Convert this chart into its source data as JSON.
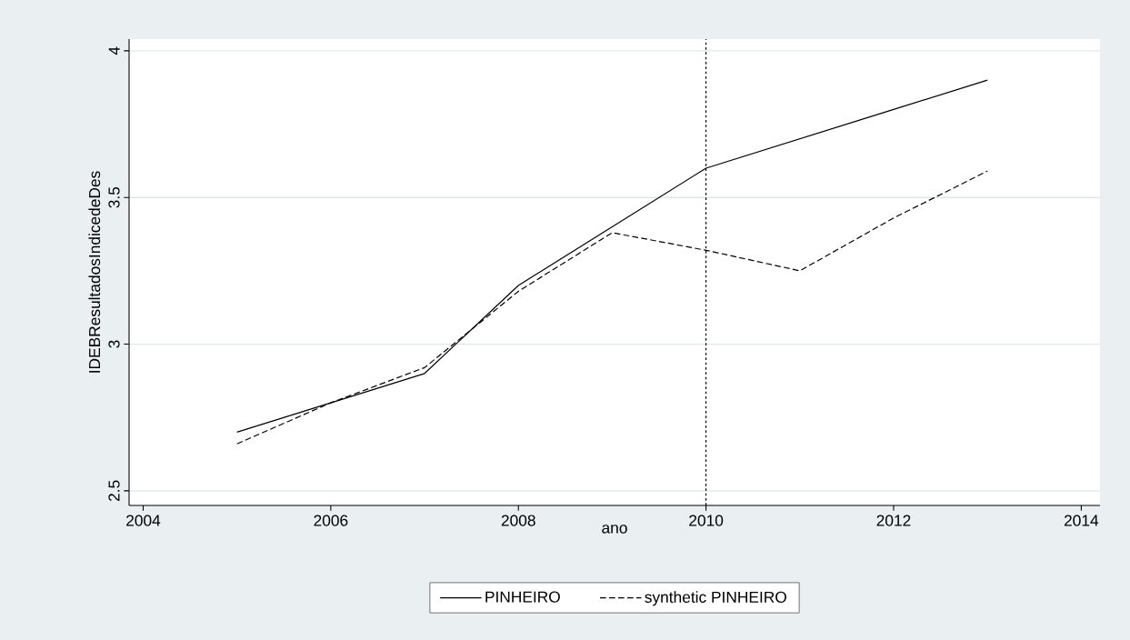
{
  "chart_data": {
    "type": "line",
    "xlabel": "ano",
    "ylabel": "IDEBResultadosIndicedeDes",
    "x": [
      2005,
      2006,
      2007,
      2008,
      2009,
      2010,
      2011,
      2012,
      2013
    ],
    "series": [
      {
        "name": "PINHEIRO",
        "color": "#000000",
        "line_style": "solid",
        "values": [
          2.7,
          2.8,
          2.9,
          3.2,
          3.4,
          3.6,
          3.7,
          3.8,
          3.9
        ]
      },
      {
        "name": "synthetic PINHEIRO",
        "color": "#000000",
        "line_style": "dashed",
        "values": [
          2.66,
          2.8,
          2.92,
          3.18,
          3.38,
          3.32,
          3.25,
          3.43,
          3.59
        ]
      }
    ],
    "xlim": [
      2003.85,
      2014.2
    ],
    "ylim": [
      2.45,
      4.04
    ],
    "xticks": [
      2004,
      2006,
      2008,
      2010,
      2012,
      2014
    ],
    "yticks": [
      2.5,
      3,
      3.5,
      4
    ],
    "ref_lines": [
      {
        "axis": "x",
        "value": 2010,
        "line_style": "dotted",
        "color": "#000000"
      }
    ],
    "grid": "y",
    "legend": "bottom",
    "marker": "none"
  }
}
